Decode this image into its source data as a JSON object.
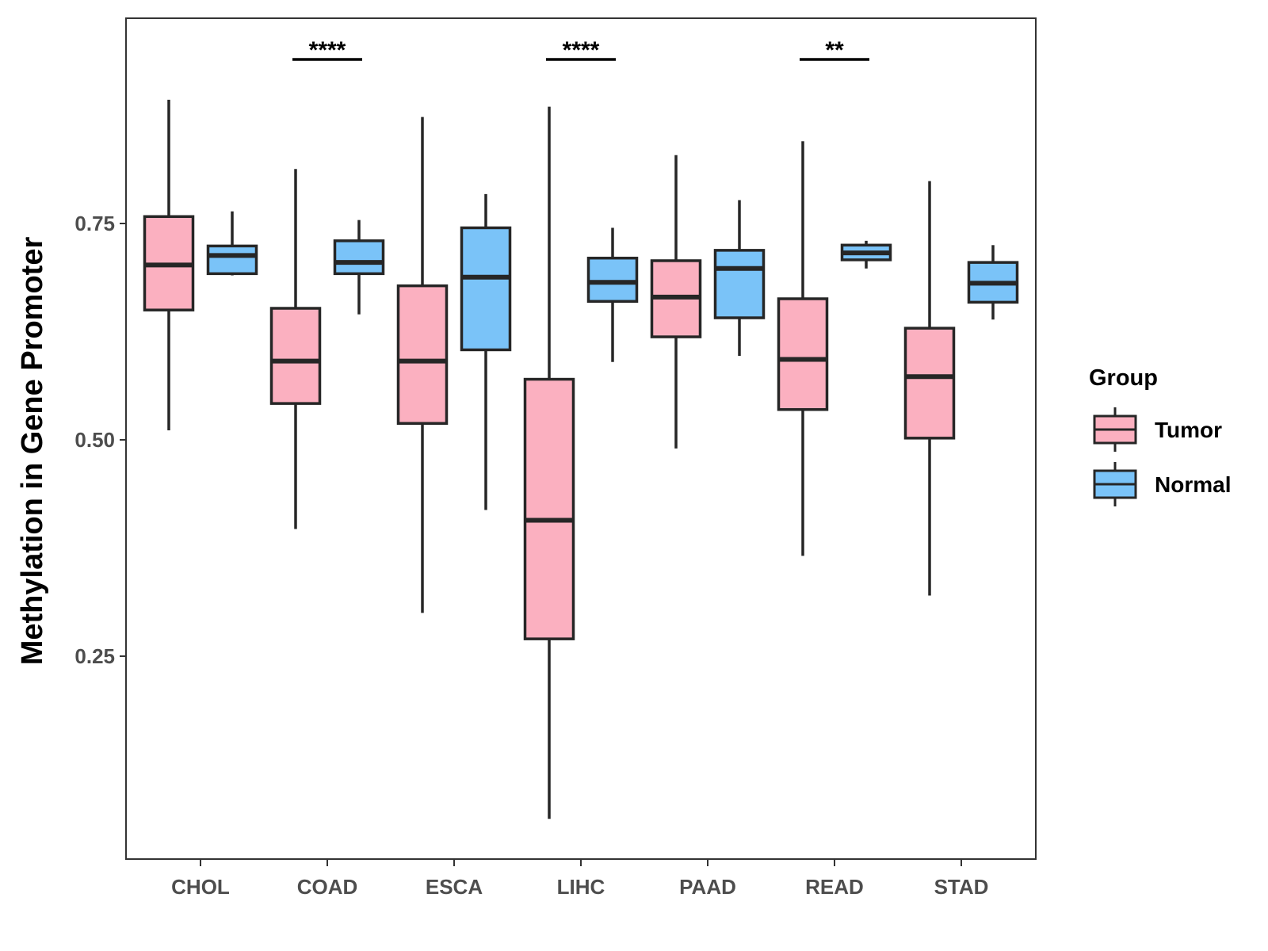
{
  "chart_data": {
    "type": "boxplot",
    "ylabel": "Methylation in Gene Promoter",
    "xlabel": "",
    "ylim": [
      0.02,
      1.0
    ],
    "yticks": [
      0.25,
      0.5,
      0.75
    ],
    "ytick_labels": [
      "0.25",
      "0.50",
      "0.75"
    ],
    "categories": [
      "CHOL",
      "COAD",
      "ESCA",
      "LIHC",
      "PAAD",
      "READ",
      "STAD"
    ],
    "legend": {
      "title": "Group",
      "position": "right",
      "items": [
        "Tumor",
        "Normal"
      ]
    },
    "colors": {
      "Tumor": "#FBB0C0",
      "Normal": "#7AC3F8",
      "outline": "#262626"
    },
    "series": [
      {
        "name": "Tumor",
        "boxes": [
          {
            "min": 0.511,
            "q1": 0.65,
            "median": 0.702,
            "q3": 0.758,
            "max": 0.893
          },
          {
            "min": 0.397,
            "q1": 0.542,
            "median": 0.591,
            "q3": 0.652,
            "max": 0.813
          },
          {
            "min": 0.3,
            "q1": 0.519,
            "median": 0.591,
            "q3": 0.678,
            "max": 0.873
          },
          {
            "min": 0.062,
            "q1": 0.27,
            "median": 0.407,
            "q3": 0.57,
            "max": 0.885
          },
          {
            "min": 0.49,
            "q1": 0.619,
            "median": 0.665,
            "q3": 0.707,
            "max": 0.829
          },
          {
            "min": 0.366,
            "q1": 0.535,
            "median": 0.593,
            "q3": 0.663,
            "max": 0.845
          },
          {
            "min": 0.32,
            "q1": 0.502,
            "median": 0.573,
            "q3": 0.629,
            "max": 0.799
          }
        ]
      },
      {
        "name": "Normal",
        "boxes": [
          {
            "min": 0.69,
            "q1": 0.692,
            "median": 0.713,
            "q3": 0.724,
            "max": 0.764
          },
          {
            "min": 0.645,
            "q1": 0.692,
            "median": 0.705,
            "q3": 0.73,
            "max": 0.754
          },
          {
            "min": 0.419,
            "q1": 0.604,
            "median": 0.688,
            "q3": 0.745,
            "max": 0.784
          },
          {
            "min": 0.59,
            "q1": 0.66,
            "median": 0.682,
            "q3": 0.71,
            "max": 0.745
          },
          {
            "min": 0.597,
            "q1": 0.641,
            "median": 0.698,
            "q3": 0.719,
            "max": 0.777
          },
          {
            "min": 0.698,
            "q1": 0.708,
            "median": 0.716,
            "q3": 0.725,
            "max": 0.73
          },
          {
            "min": 0.639,
            "q1": 0.659,
            "median": 0.681,
            "q3": 0.705,
            "max": 0.725
          }
        ]
      }
    ],
    "annotations": [
      {
        "category": "COAD",
        "label": "****"
      },
      {
        "category": "LIHC",
        "label": "****"
      },
      {
        "category": "READ",
        "label": "**"
      }
    ]
  }
}
